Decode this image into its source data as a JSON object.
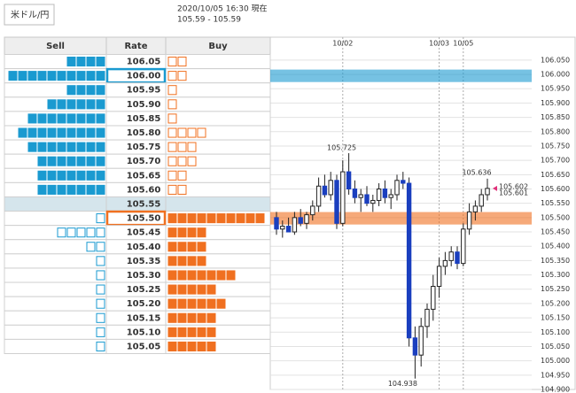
{
  "pair": "米ドル/円",
  "timestamp": "2020/10/05 16:30 現在",
  "quote": "105.59 - 105.59",
  "table": {
    "headers": [
      "Sell",
      "Rate",
      "Buy"
    ],
    "header_colors": [
      "#1a9ad0",
      "#333333",
      "#f07020"
    ],
    "rows": [
      {
        "rate": "106.05",
        "sell": 4,
        "buy": 2,
        "sell_filled": true,
        "buy_filled": false
      },
      {
        "rate": "106.00",
        "sell": 10,
        "buy": 2,
        "sell_filled": true,
        "buy_filled": false,
        "highlight": "#1a9ad0"
      },
      {
        "rate": "105.95",
        "sell": 4,
        "buy": 1,
        "sell_filled": true,
        "buy_filled": false
      },
      {
        "rate": "105.90",
        "sell": 6,
        "buy": 1,
        "sell_filled": true,
        "buy_filled": false
      },
      {
        "rate": "105.85",
        "sell": 8,
        "buy": 1,
        "sell_filled": true,
        "buy_filled": false
      },
      {
        "rate": "105.80",
        "sell": 9,
        "buy": 4,
        "sell_filled": true,
        "buy_filled": false
      },
      {
        "rate": "105.75",
        "sell": 8,
        "buy": 3,
        "sell_filled": true,
        "buy_filled": false
      },
      {
        "rate": "105.70",
        "sell": 7,
        "buy": 3,
        "sell_filled": true,
        "buy_filled": false
      },
      {
        "rate": "105.65",
        "sell": 7,
        "buy": 2,
        "sell_filled": true,
        "buy_filled": false
      },
      {
        "rate": "105.60",
        "sell": 7,
        "buy": 2,
        "sell_filled": true,
        "buy_filled": false
      },
      {
        "rate": "105.55",
        "sell": 0,
        "buy": 0,
        "sell_filled": true,
        "buy_filled": true,
        "shade": "#d5e5ec"
      },
      {
        "rate": "105.50",
        "sell": 1,
        "buy": 10,
        "sell_filled": false,
        "buy_filled": true,
        "highlight": "#f07020"
      },
      {
        "rate": "105.45",
        "sell": 5,
        "buy": 4,
        "sell_filled": false,
        "buy_filled": true
      },
      {
        "rate": "105.40",
        "sell": 2,
        "buy": 4,
        "sell_filled": false,
        "buy_filled": true
      },
      {
        "rate": "105.35",
        "sell": 1,
        "buy": 4,
        "sell_filled": false,
        "buy_filled": true
      },
      {
        "rate": "105.30",
        "sell": 1,
        "buy": 7,
        "sell_filled": false,
        "buy_filled": true
      },
      {
        "rate": "105.25",
        "sell": 1,
        "buy": 5,
        "sell_filled": false,
        "buy_filled": true
      },
      {
        "rate": "105.20",
        "sell": 1,
        "buy": 6,
        "sell_filled": false,
        "buy_filled": true
      },
      {
        "rate": "105.15",
        "sell": 1,
        "buy": 5,
        "sell_filled": false,
        "buy_filled": true
      },
      {
        "rate": "105.10",
        "sell": 1,
        "buy": 5,
        "sell_filled": false,
        "buy_filled": true
      },
      {
        "rate": "105.05",
        "sell": 1,
        "buy": 5,
        "sell_filled": false,
        "buy_filled": true
      }
    ]
  },
  "chart_data": {
    "type": "candlestick",
    "up_color": "#ffffff",
    "down_color": "#1a3fbf",
    "open": [
      105.5,
      105.46,
      105.47,
      105.45,
      105.5,
      105.48,
      105.51,
      105.54,
      105.61,
      105.58,
      105.63,
      105.48,
      105.66,
      105.6,
      105.57,
      105.58,
      105.55,
      105.56,
      105.6,
      105.57,
      105.58,
      105.63,
      105.62,
      105.08,
      105.02,
      105.12,
      105.18,
      105.26,
      105.33,
      105.35,
      105.38,
      105.34,
      105.46,
      105.52,
      105.54,
      105.58
    ],
    "high": [
      105.52,
      105.49,
      105.5,
      105.52,
      105.53,
      105.52,
      105.56,
      105.64,
      105.65,
      105.66,
      105.65,
      105.7,
      105.725,
      105.63,
      105.6,
      105.61,
      105.58,
      105.62,
      105.63,
      105.6,
      105.65,
      105.66,
      105.64,
      105.12,
      105.15,
      105.2,
      105.3,
      105.36,
      105.38,
      105.4,
      105.4,
      105.48,
      105.55,
      105.56,
      105.6,
      105.636
    ],
    "low": [
      105.44,
      105.43,
      105.45,
      105.44,
      105.47,
      105.46,
      105.49,
      105.52,
      105.57,
      105.56,
      105.46,
      105.47,
      105.58,
      105.55,
      105.52,
      105.54,
      105.52,
      105.54,
      105.55,
      105.53,
      105.56,
      105.6,
      105.05,
      104.938,
      104.98,
      105.08,
      105.14,
      105.22,
      105.3,
      105.33,
      105.32,
      105.33,
      105.44,
      105.49,
      105.52,
      105.56
    ],
    "close": [
      105.46,
      105.47,
      105.45,
      105.5,
      105.48,
      105.51,
      105.54,
      105.61,
      105.58,
      105.63,
      105.48,
      105.66,
      105.6,
      105.57,
      105.58,
      105.55,
      105.56,
      105.6,
      105.57,
      105.58,
      105.63,
      105.62,
      105.08,
      105.02,
      105.12,
      105.18,
      105.26,
      105.33,
      105.35,
      105.38,
      105.34,
      105.46,
      105.52,
      105.54,
      105.58,
      105.602
    ],
    "reference_price": 105.601,
    "xticks": [
      {
        "value": 11,
        "label": "10/02"
      },
      {
        "value": 27,
        "label": "10/03"
      },
      {
        "value": 31,
        "label": "10/05"
      }
    ],
    "ylim": [
      104.9,
      106.13
    ],
    "yticks": [
      {
        "value": 106.05,
        "label": "106.050"
      },
      {
        "value": 106.0,
        "label": "106.000"
      },
      {
        "value": 105.95,
        "label": "105.950"
      },
      {
        "value": 105.9,
        "label": "105.900"
      },
      {
        "value": 105.85,
        "label": "105.850"
      },
      {
        "value": 105.8,
        "label": "105.800"
      },
      {
        "value": 105.75,
        "label": "105.750"
      },
      {
        "value": 105.7,
        "label": "105.700"
      },
      {
        "value": 105.65,
        "label": "105.650"
      },
      {
        "value": 105.6,
        "label": "105.600"
      },
      {
        "value": 105.55,
        "label": "105.550"
      },
      {
        "value": 105.5,
        "label": "105.500"
      },
      {
        "value": 105.45,
        "label": "105.450"
      },
      {
        "value": 105.4,
        "label": "105.400"
      },
      {
        "value": 105.35,
        "label": "105.350"
      },
      {
        "value": 105.3,
        "label": "105.300"
      },
      {
        "value": 105.25,
        "label": "105.250"
      },
      {
        "value": 105.2,
        "label": "105.200"
      },
      {
        "value": 105.15,
        "label": "105.150"
      },
      {
        "value": 105.1,
        "label": "105.100"
      },
      {
        "value": 105.05,
        "label": "105.050"
      },
      {
        "value": 105.0,
        "label": "105.000"
      },
      {
        "value": 104.95,
        "label": "104.950"
      },
      {
        "value": 104.9,
        "label": "104.900"
      }
    ],
    "grid": true
  }
}
